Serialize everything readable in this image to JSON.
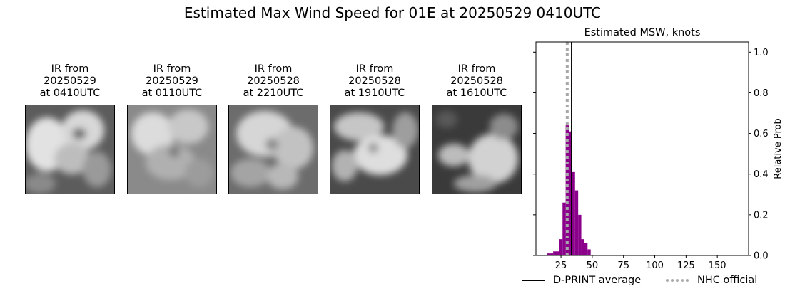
{
  "figure": {
    "title": "Estimated Max Wind Speed for 01E at 20250529 0410UTC"
  },
  "ir_panels": [
    {
      "line1": "IR from",
      "line2": "20250529",
      "line3": "at 0410UTC"
    },
    {
      "line1": "IR from",
      "line2": "20250529",
      "line3": "at 0110UTC"
    },
    {
      "line1": "IR from",
      "line2": "20250528",
      "line3": "at 2210UTC"
    },
    {
      "line1": "IR from",
      "line2": "20250528",
      "line3": "at 1910UTC"
    },
    {
      "line1": "IR from",
      "line2": "20250528",
      "line3": "at 1610UTC"
    }
  ],
  "chart_data": {
    "type": "bar",
    "title": "Estimated MSW, knots",
    "xlabel": "",
    "ylabel": "Relative Prob",
    "xlim": [
      5,
      175
    ],
    "ylim": [
      0,
      1.05
    ],
    "x_ticks": [
      25,
      50,
      75,
      100,
      125,
      150
    ],
    "y_ticks": [
      0.0,
      0.2,
      0.4,
      0.6,
      0.8,
      1.0
    ],
    "y_tick_labels": [
      "0.0",
      "0.2",
      "0.4",
      "0.6",
      "0.8",
      "1.0"
    ],
    "y_axis_side": "right",
    "bin_width": 2.5,
    "bar_color": "#8b008b",
    "bins": [
      {
        "x": 15,
        "value": 0.01
      },
      {
        "x": 17.5,
        "value": 0.01
      },
      {
        "x": 20,
        "value": 0.02
      },
      {
        "x": 22.5,
        "value": 0.02
      },
      {
        "x": 25,
        "value": 0.08
      },
      {
        "x": 27.5,
        "value": 0.26
      },
      {
        "x": 30,
        "value": 0.64
      },
      {
        "x": 32.5,
        "value": 0.61
      },
      {
        "x": 35,
        "value": 0.41
      },
      {
        "x": 37.5,
        "value": 0.32
      },
      {
        "x": 40,
        "value": 0.2
      },
      {
        "x": 42.5,
        "value": 0.08
      },
      {
        "x": 45,
        "value": 0.06
      },
      {
        "x": 47.5,
        "value": 0.03
      }
    ],
    "dprint_average": 33.5,
    "nhc_official": 30,
    "legend": {
      "placement": "bottom",
      "dprint_label": "D-PRINT average",
      "dprint_color": "#000000",
      "nhc_label": "NHC official",
      "nhc_color": "#a8a8a8"
    }
  }
}
